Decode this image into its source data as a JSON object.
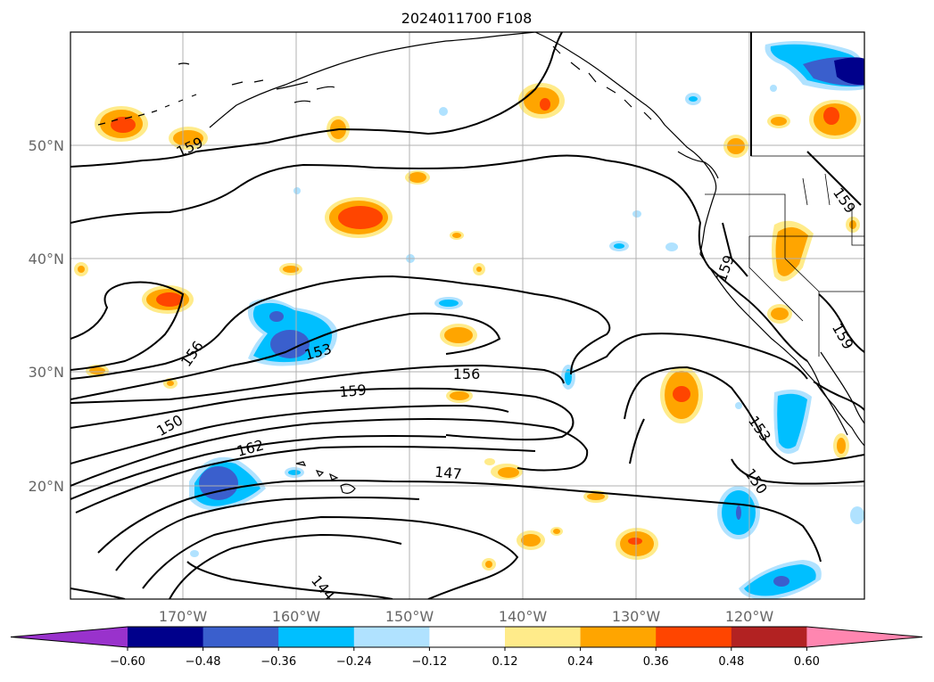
{
  "title": "2024011700 F108",
  "lat_labels": [
    "50°N",
    "40°N",
    "30°N",
    "20°N"
  ],
  "lon_labels": [
    "170°W",
    "160°W",
    "150°W",
    "140°W",
    "130°W",
    "120°W"
  ],
  "contour_labels": [
    "159",
    "156",
    "153",
    "156",
    "159",
    "150",
    "162",
    "147",
    "144",
    "159",
    "159",
    "159",
    "153",
    "150"
  ],
  "colorbar": {
    "ticks": [
      "−0.60",
      "−0.48",
      "−0.36",
      "−0.24",
      "−0.12",
      "0.12",
      "0.24",
      "0.36",
      "0.48",
      "0.60"
    ],
    "colors": [
      "#9932cc",
      "#00008b",
      "#3a5fcd",
      "#00bfff",
      "#b0e2ff",
      "#ffffff",
      "#ffeb8a",
      "#ffa500",
      "#ff4500",
      "#b22222",
      "#ff86b0"
    ]
  }
}
